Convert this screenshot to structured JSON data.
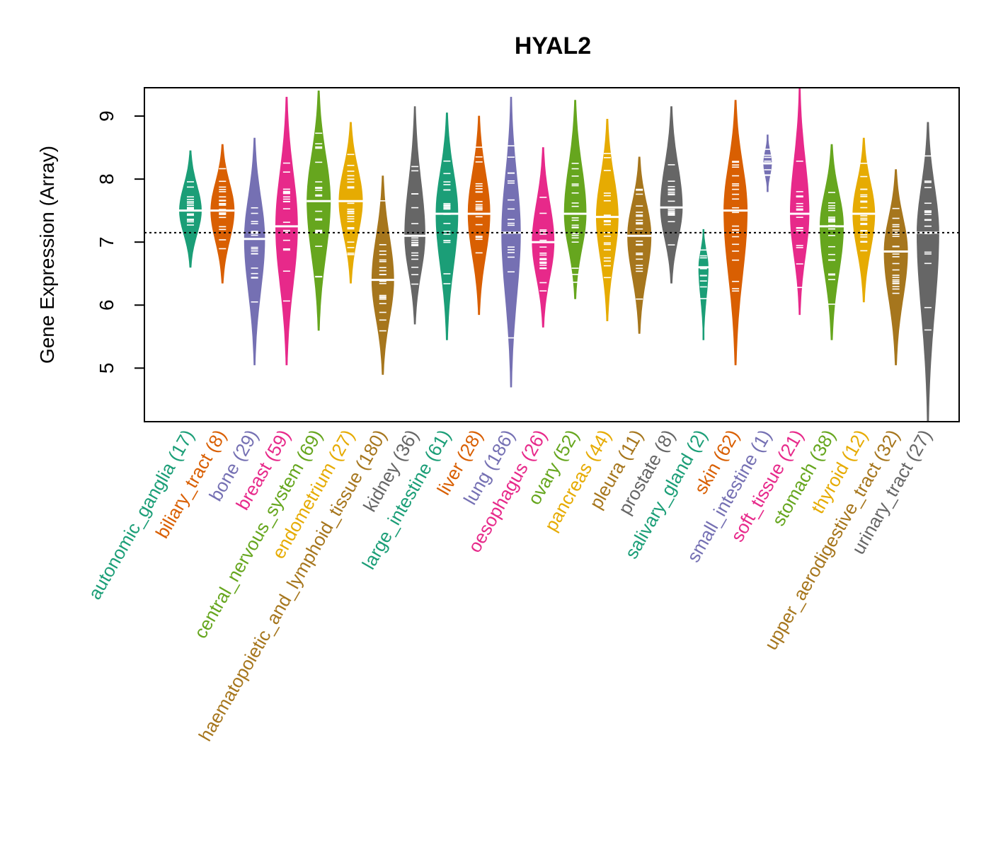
{
  "chart_data": {
    "type": "violin",
    "title": "HYAL2",
    "ylabel": "Gene Expression (Array)",
    "xlabel": "",
    "ylim": [
      4.15,
      9.45
    ],
    "yticks": [
      5,
      6,
      7,
      8,
      9
    ],
    "reference_line": 7.15,
    "categories": [
      {
        "label": "autonomic_ganglia (17)",
        "color": "#1B9E77",
        "median": 7.5,
        "min": 6.6,
        "max": 8.45,
        "width": 0.7
      },
      {
        "label": "biliary_tract (8)",
        "color": "#D95F02",
        "median": 7.5,
        "min": 6.35,
        "max": 8.55,
        "width": 0.75
      },
      {
        "label": "bone (29)",
        "color": "#7570B3",
        "median": 7.05,
        "min": 5.05,
        "max": 8.65,
        "width": 0.65
      },
      {
        "label": "breast (59)",
        "color": "#E7298A",
        "median": 7.25,
        "min": 5.05,
        "max": 9.3,
        "width": 0.7
      },
      {
        "label": "central_nervous_system (69)",
        "color": "#66A61E",
        "median": 7.65,
        "min": 5.6,
        "max": 9.4,
        "width": 0.75
      },
      {
        "label": "endometrium (27)",
        "color": "#E6AB02",
        "median": 7.65,
        "min": 6.35,
        "max": 8.9,
        "width": 0.75
      },
      {
        "label": "haematopoietic_and_lymphoid_tissue (180)",
        "color": "#A6761D",
        "median": 6.4,
        "min": 4.9,
        "max": 8.05,
        "width": 0.7
      },
      {
        "label": "kidney (36)",
        "color": "#666666",
        "median": 7.1,
        "min": 5.7,
        "max": 9.15,
        "width": 0.65
      },
      {
        "label": "large_intestine (61)",
        "color": "#1B9E77",
        "median": 7.45,
        "min": 5.45,
        "max": 9.05,
        "width": 0.7
      },
      {
        "label": "liver (28)",
        "color": "#D95F02",
        "median": 7.45,
        "min": 5.85,
        "max": 9.0,
        "width": 0.7
      },
      {
        "label": "lung (186)",
        "color": "#7570B3",
        "median": 7.15,
        "min": 4.7,
        "max": 9.3,
        "width": 0.6
      },
      {
        "label": "oesophagus (26)",
        "color": "#E7298A",
        "median": 7.0,
        "min": 5.65,
        "max": 8.5,
        "width": 0.7
      },
      {
        "label": "ovary (52)",
        "color": "#66A61E",
        "median": 7.45,
        "min": 6.1,
        "max": 9.25,
        "width": 0.7
      },
      {
        "label": "pancreas (44)",
        "color": "#E6AB02",
        "median": 7.4,
        "min": 5.75,
        "max": 8.95,
        "width": 0.7
      },
      {
        "label": "pleura (11)",
        "color": "#A6761D",
        "median": 7.1,
        "min": 5.55,
        "max": 8.35,
        "width": 0.75
      },
      {
        "label": "prostate (8)",
        "color": "#666666",
        "median": 7.55,
        "min": 6.35,
        "max": 9.15,
        "width": 0.7
      },
      {
        "label": "salivary_gland (2)",
        "color": "#1B9E77",
        "median": 6.6,
        "min": 5.45,
        "max": 7.2,
        "width": 0.3
      },
      {
        "label": "skin (62)",
        "color": "#D95F02",
        "median": 7.5,
        "min": 5.05,
        "max": 9.25,
        "width": 0.75
      },
      {
        "label": "small_intestine (1)",
        "color": "#7570B3",
        "median": 8.25,
        "min": 7.8,
        "max": 8.7,
        "width": 0.25
      },
      {
        "label": "soft_tissue (21)",
        "color": "#E7298A",
        "median": 7.45,
        "min": 5.85,
        "max": 9.45,
        "width": 0.6
      },
      {
        "label": "stomach (38)",
        "color": "#66A61E",
        "median": 7.25,
        "min": 5.45,
        "max": 8.55,
        "width": 0.75
      },
      {
        "label": "thyroid (12)",
        "color": "#E6AB02",
        "median": 7.45,
        "min": 6.05,
        "max": 8.65,
        "width": 0.7
      },
      {
        "label": "upper_aerodigestive_tract (32)",
        "color": "#A6761D",
        "median": 6.85,
        "min": 5.05,
        "max": 8.15,
        "width": 0.75
      },
      {
        "label": "urinary_tract (27)",
        "color": "#666666",
        "median": 7.15,
        "min": 4.15,
        "max": 8.9,
        "width": 0.7
      }
    ]
  }
}
